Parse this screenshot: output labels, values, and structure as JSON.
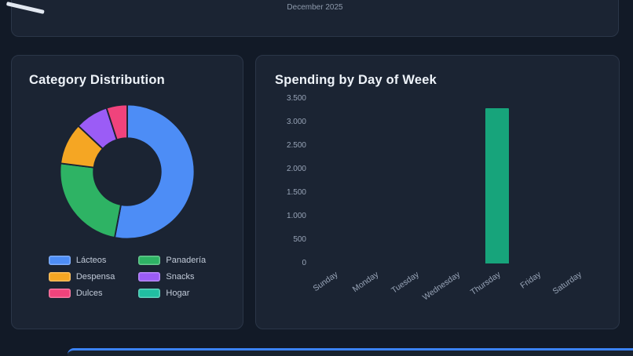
{
  "page": {
    "top_card": {
      "subtitle": "December 2025"
    }
  },
  "cards": {
    "category": {
      "title": "Category Distribution"
    },
    "spending": {
      "title": "Spending by Day of Week"
    }
  },
  "colors": {
    "page_background": "#121a27",
    "card_background": "#1b2433",
    "card_border": "#2b3648",
    "accent_blue_border": "#3b82f6",
    "title_text": "#eef3f9",
    "muted_text": "#97a3b6"
  },
  "chart_data": [
    {
      "type": "pie",
      "donut": true,
      "title": "Category Distribution",
      "labels": [
        "Lácteos",
        "Panadería",
        "Despensa",
        "Snacks",
        "Dulces",
        "Hogar"
      ],
      "values_percent_estimate": [
        53,
        24,
        10,
        8,
        5,
        0
      ],
      "colors": [
        "#4d8df6",
        "#2eb364",
        "#f5a623",
        "#9b5cf6",
        "#f0437c",
        "#21bfa2"
      ],
      "legend_position": "bottom"
    },
    {
      "type": "bar",
      "title": "Spending by Day of Week",
      "categories": [
        "Sunday",
        "Monday",
        "Tuesday",
        "Wednesday",
        "Thursday",
        "Friday",
        "Saturday"
      ],
      "values": [
        0,
        0,
        0,
        0,
        3300,
        0,
        0
      ],
      "ylim": [
        0,
        3500
      ],
      "ytick_labels": [
        "0",
        "500",
        "1.000",
        "1.500",
        "2.000",
        "2.500",
        "3.000",
        "3.500"
      ],
      "bar_color": "#17a47b",
      "grid": false,
      "xlabel_rotation_deg": -35
    }
  ]
}
